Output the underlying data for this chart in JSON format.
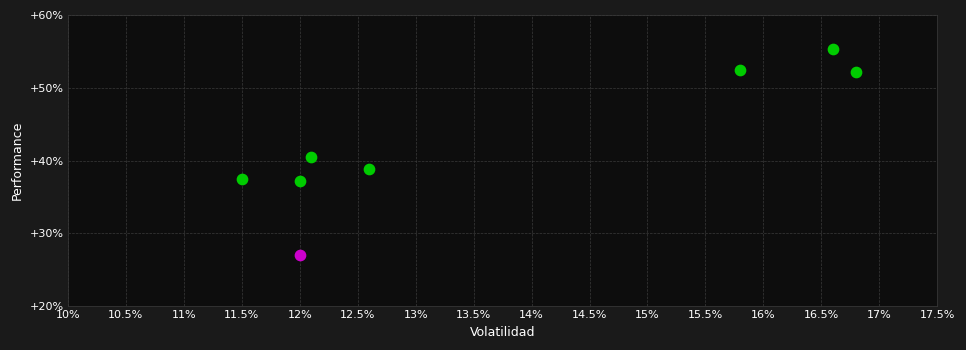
{
  "background_color": "#1a1a1a",
  "plot_bg_color": "#0d0d0d",
  "grid_color": "#3a3a3a",
  "xlabel": "Volatilidad",
  "ylabel": "Performance",
  "xlim": [
    0.1,
    0.175
  ],
  "ylim": [
    0.2,
    0.6
  ],
  "xticks": [
    0.1,
    0.105,
    0.11,
    0.115,
    0.12,
    0.125,
    0.13,
    0.135,
    0.14,
    0.145,
    0.15,
    0.155,
    0.16,
    0.165,
    0.17,
    0.175
  ],
  "xtick_labels": [
    "10%",
    "10.5%",
    "11%",
    "11.5%",
    "12%",
    "12.5%",
    "13%",
    "13.5%",
    "14%",
    "14.5%",
    "15%",
    "15.5%",
    "16%",
    "16.5%",
    "17%",
    "17.5%"
  ],
  "yticks": [
    0.2,
    0.3,
    0.4,
    0.5,
    0.6
  ],
  "ytick_labels": [
    "+20%",
    "+30%",
    "+40%",
    "+50%",
    "+60%"
  ],
  "green_points": [
    [
      0.115,
      0.375
    ],
    [
      0.12,
      0.372
    ],
    [
      0.121,
      0.405
    ],
    [
      0.126,
      0.388
    ],
    [
      0.158,
      0.524
    ],
    [
      0.166,
      0.553
    ],
    [
      0.168,
      0.522
    ]
  ],
  "magenta_point": [
    0.12,
    0.27
  ],
  "green_color": "#00cc00",
  "magenta_color": "#cc00cc",
  "marker_size": 55,
  "font_color": "#ffffff",
  "axis_font_size": 8,
  "label_font_size": 9
}
